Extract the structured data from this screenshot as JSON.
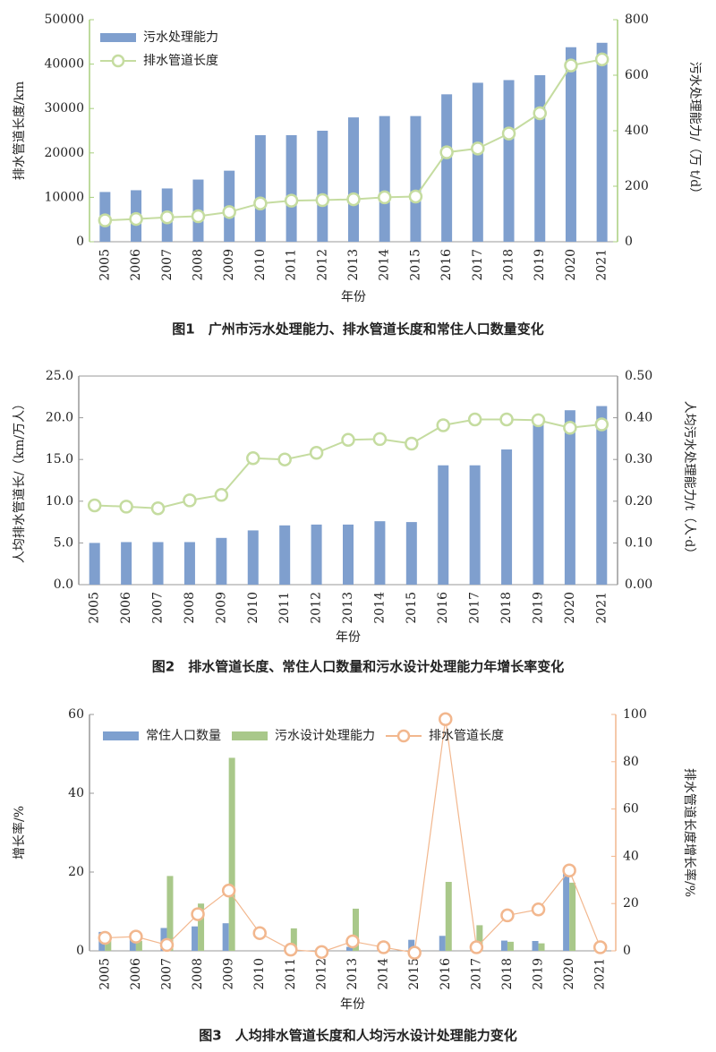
{
  "chart_data": [
    {
      "type": "bar",
      "title": "图1　广州市污水处理能力、排水管道长度和常住人口数量变化",
      "xlabel": "年份",
      "ylabel": "排水管道长度/km",
      "y2label": "污水处理能力/（万 t/d）",
      "categories": [
        "2005",
        "2006",
        "2007",
        "2008",
        "2009",
        "2010",
        "2011",
        "2012",
        "2013",
        "2014",
        "2015",
        "2016",
        "2017",
        "2018",
        "2019",
        "2020",
        "2021"
      ],
      "series": [
        {
          "name": "污水处理能力",
          "type": "bar",
          "color": "#7f9fce",
          "values": [
            11200,
            11600,
            12000,
            14000,
            16000,
            24000,
            24000,
            25000,
            28000,
            28300,
            28300,
            33200,
            35800,
            36400,
            37500,
            43800,
            44800
          ]
        },
        {
          "name": "排水管道长度",
          "type": "line",
          "axis": "y2",
          "color": "#c5dca0",
          "values": [
            77,
            82,
            88,
            92,
            107,
            138,
            148,
            150,
            153,
            160,
            163,
            322,
            336,
            390,
            463,
            635,
            657
          ]
        }
      ],
      "ylim": [
        0,
        50000
      ],
      "yticks": [
        0,
        10000,
        20000,
        30000,
        40000,
        50000
      ],
      "y2lim": [
        0,
        800
      ],
      "y2ticks": [
        0,
        200,
        400,
        600,
        800
      ],
      "legend": "upper left"
    },
    {
      "type": "bar",
      "title": "图2　排水管道长度、常住人口数量和污水设计处理能力年增长率变化",
      "xlabel": "年份",
      "ylabel": "人均排水管道长/（km/万人）",
      "y2label": "人均污水处理能力/t（人·d）",
      "categories": [
        "2005",
        "2006",
        "2007",
        "2008",
        "2009",
        "2010",
        "2011",
        "2012",
        "2013",
        "2014",
        "2015",
        "2016",
        "2017",
        "2018",
        "2019",
        "2020",
        "2021"
      ],
      "series": [
        {
          "type": "bar",
          "color": "#7f9fce",
          "values": [
            5.0,
            5.1,
            5.1,
            5.1,
            5.6,
            6.5,
            7.1,
            7.2,
            7.2,
            7.6,
            7.5,
            14.3,
            14.3,
            16.2,
            19.5,
            20.9,
            21.4
          ]
        },
        {
          "type": "line",
          "axis": "y2",
          "color": "#c5dca0",
          "values": [
            0.19,
            0.187,
            0.183,
            0.202,
            0.215,
            0.303,
            0.3,
            0.316,
            0.347,
            0.349,
            0.338,
            0.382,
            0.396,
            0.396,
            0.394,
            0.376,
            0.384
          ]
        }
      ],
      "ylim": [
        0,
        25
      ],
      "yticks": [
        {
          "value": 0,
          "label": "0.0"
        },
        {
          "value": 5,
          "label": "5.0"
        },
        {
          "value": 10,
          "label": "10.0"
        },
        {
          "value": 15,
          "label": "15.0"
        },
        {
          "value": 20,
          "label": "20.0"
        },
        {
          "value": 25,
          "label": "25.0"
        }
      ],
      "y2lim": [
        0,
        0.5
      ],
      "y2ticks": [
        {
          "value": 0,
          "label": "0.00"
        },
        {
          "value": 0.1,
          "label": "0.10"
        },
        {
          "value": 0.2,
          "label": "0.20"
        },
        {
          "value": 0.3,
          "label": "0.30"
        },
        {
          "value": 0.4,
          "label": "0.40"
        },
        {
          "value": 0.5,
          "label": "0.50"
        }
      ]
    },
    {
      "type": "bar",
      "title": "图3　人均排水管道长度和人均污水设计处理能力变化",
      "xlabel": "年份",
      "ylabel": "增长率/%",
      "y2label": "排水管道长度增长率/%",
      "categories": [
        "2005",
        "2006",
        "2007",
        "2008",
        "2009",
        "2010",
        "2011",
        "2012",
        "2013",
        "2014",
        "2015",
        "2016",
        "2017",
        "2018",
        "2019",
        "2020",
        "2021"
      ],
      "series": [
        {
          "name": "常住人口数量",
          "type": "bar",
          "color": "#7ea0cf",
          "values": [
            4.8,
            4.5,
            5.8,
            6.2,
            7.0,
            0,
            0,
            0.5,
            1.0,
            1.0,
            2.8,
            3.8,
            1.2,
            2.6,
            2.5,
            21.0,
            0
          ]
        },
        {
          "name": "污水设计处理能力",
          "type": "bar",
          "color": "#a9c88a",
          "values": [
            2.5,
            2.5,
            19.0,
            12.0,
            49.0,
            0,
            5.7,
            0.5,
            10.7,
            1.0,
            0,
            17.5,
            6.5,
            2.3,
            1.9,
            17.3,
            0
          ]
        },
        {
          "name": "排水管道长度",
          "type": "line",
          "axis": "y2",
          "color": "#f2b78e",
          "values": [
            5.5,
            6,
            2.5,
            15.5,
            25.5,
            7.5,
            0.5,
            -0.5,
            4,
            1.5,
            -0.8,
            98,
            1.5,
            15,
            17.5,
            34,
            1.5
          ]
        }
      ],
      "ylim": [
        0,
        60
      ],
      "yticks": [
        0,
        20,
        40,
        60
      ],
      "y2lim": [
        0,
        100
      ],
      "y2ticks": [
        0,
        20,
        40,
        60,
        80,
        100
      ],
      "legend": "upper center"
    }
  ]
}
